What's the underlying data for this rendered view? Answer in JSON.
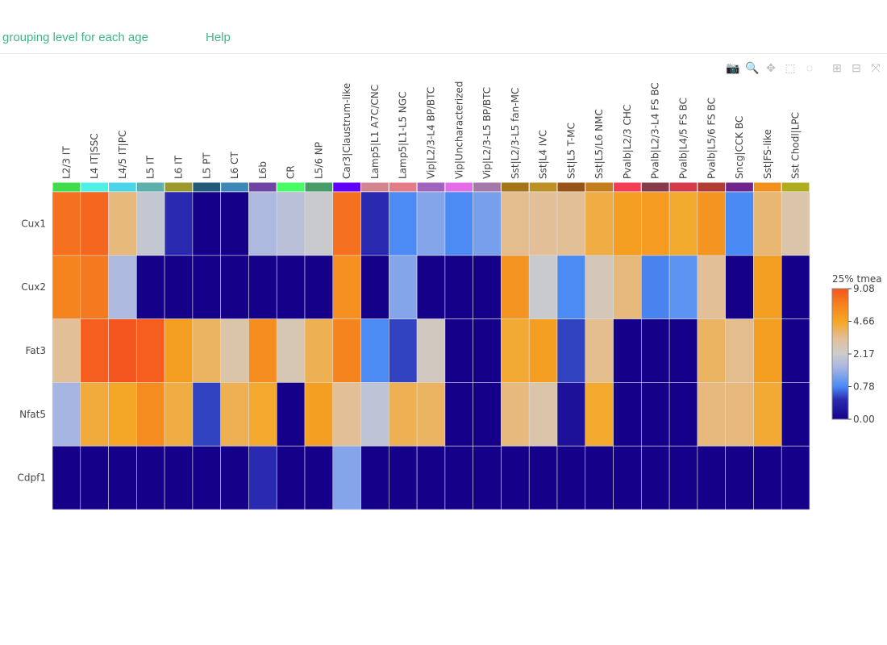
{
  "nav": {
    "grouping": "grouping level for each age",
    "help": "Help"
  },
  "modebar": [
    {
      "icon": "camera-icon",
      "glyph": "📷"
    },
    {
      "icon": "zoom-icon",
      "glyph": "🔍"
    },
    {
      "icon": "pan-icon",
      "glyph": "✥"
    },
    {
      "icon": "box-select-icon",
      "glyph": "⬚"
    },
    {
      "icon": "lasso-icon",
      "glyph": "◌"
    },
    {
      "icon": "zoom-in-icon",
      "glyph": "⊞"
    },
    {
      "icon": "zoom-out-icon",
      "glyph": "⊟"
    },
    {
      "icon": "autoscale-icon",
      "glyph": "⤧"
    }
  ],
  "chart_data": {
    "type": "heatmap",
    "x": [
      "L2/3 IT",
      "L4 IT|SSC",
      "L4/5 IT|PC",
      "L5 IT",
      "L6 IT",
      "L5 PT",
      "L6 CT",
      "L6b",
      "CR",
      "L5/6 NP",
      "Car3|Claustrum-like",
      "Lamp5|L1 A7C/CNC",
      "Lamp5|L1-L5 NGC",
      "Vip|L2/3-L4 BP/BTC",
      "Vip|Uncharacterized",
      "Vip|L2/3-L5 BP/BTC",
      "Sst|L2/3-L5 fan-MC",
      "Sst|L4 IVC",
      "Sst|L5 T-MC",
      "Sst|L5/L6 NMC",
      "Pvalb|L2/3 CHC",
      "Pvalb|L2/3-L4 FS BC",
      "Pvalb|L4/5 FS BC",
      "Pvalb|L5/6 FS BC",
      "Sncg|CCK BC",
      "Sst|FS-like",
      "Sst Chodl|LPC"
    ],
    "x_colors": [
      "#3fdc4c",
      "#4ff0e6",
      "#4cd4e8",
      "#5eb0ac",
      "#9c9a2c",
      "#235a78",
      "#3e88b8",
      "#7044a4",
      "#48fc66",
      "#489c68",
      "#6000f8",
      "#d4848c",
      "#e47c88",
      "#a064bc",
      "#e46ce8",
      "#a478a8",
      "#a47418",
      "#bc9024",
      "#985418",
      "#c47c1c",
      "#f43c54",
      "#843c4c",
      "#d43c4c",
      "#b03c34",
      "#70248c",
      "#f4901c",
      "#b0ac20"
    ],
    "y": [
      "Cux1",
      "Cux2",
      "Fat3",
      "Nfat5",
      "Cdpf1"
    ],
    "z": [
      [
        7.5,
        8,
        3.5,
        2,
        0.4,
        0,
        0,
        1.6,
        1.8,
        2.1,
        7.5,
        0.4,
        0.8,
        1.2,
        0.8,
        1.1,
        3.3,
        3.2,
        3.2,
        4.2,
        5,
        5.2,
        4.5,
        5.5,
        0.78,
        3.6,
        2.8
      ],
      [
        6.5,
        7,
        1.6,
        0,
        0,
        0,
        0,
        0,
        0,
        0,
        5.8,
        0,
        1.2,
        0,
        0,
        0,
        5.5,
        2.1,
        0.8,
        2.5,
        3.5,
        0.75,
        0.9,
        3.2,
        0,
        5,
        0
      ],
      [
        3.2,
        8.5,
        9,
        8.5,
        5,
        3.8,
        2.8,
        6,
        2.6,
        4,
        6.5,
        0.8,
        0.5,
        2.4,
        0,
        0,
        4.4,
        5,
        0.5,
        3.3,
        0,
        0,
        0,
        3.8,
        3.3,
        5,
        0
      ],
      [
        1.5,
        4.3,
        4.6,
        6,
        4.2,
        0.5,
        4,
        4.5,
        0,
        5,
        3.2,
        1.9,
        4,
        3.8,
        0,
        0,
        3.5,
        2.8,
        0.15,
        4.5,
        0,
        0,
        0,
        3.5,
        3.5,
        4.4,
        0
      ],
      [
        0,
        0,
        0,
        0,
        0,
        0,
        0,
        0.4,
        0,
        0,
        1.2,
        0,
        0,
        0,
        0,
        0,
        0,
        0,
        0,
        0,
        0,
        0,
        0,
        0,
        0,
        0,
        0
      ]
    ],
    "colorbar": {
      "title": "25% tmea",
      "ticks": [
        "9.08",
        "4.66",
        "2.17",
        "0.78",
        "0.00"
      ],
      "range": [
        0,
        9.08
      ],
      "scale": "log1p"
    },
    "colorscale": [
      [
        0,
        "#15008a"
      ],
      [
        0.15,
        "#2a2bb0"
      ],
      [
        0.25,
        "#4a8af5"
      ],
      [
        0.4,
        "#a9b6e2"
      ],
      [
        0.5,
        "#cccccc"
      ],
      [
        0.62,
        "#e2bf98"
      ],
      [
        0.75,
        "#f5a623"
      ],
      [
        0.88,
        "#f5821f"
      ],
      [
        1,
        "#f5541e"
      ]
    ]
  }
}
